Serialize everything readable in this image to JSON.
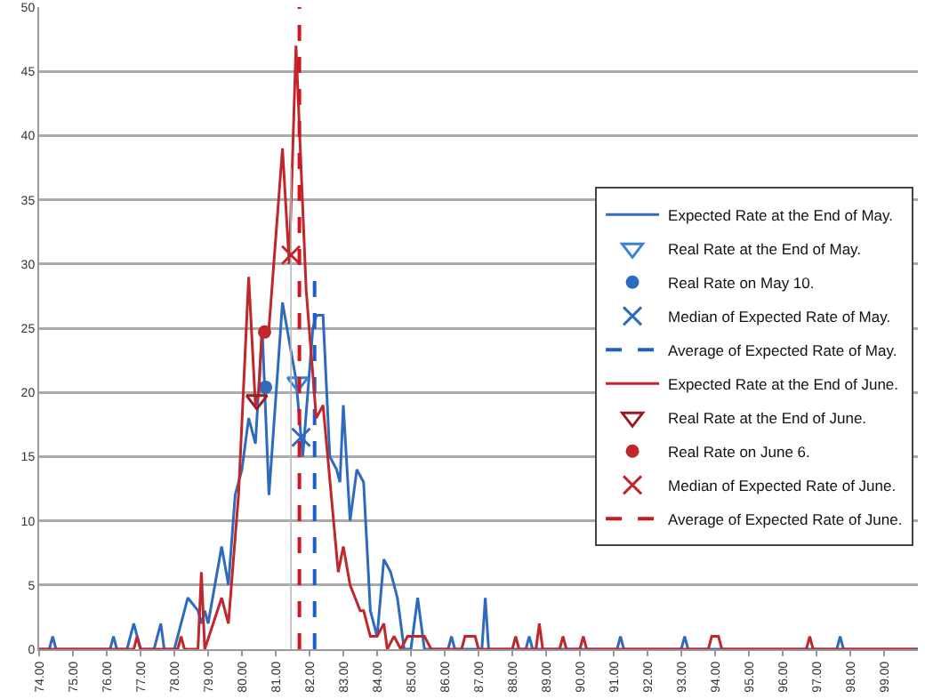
{
  "chart_data": {
    "type": "line",
    "xlim": [
      74,
      100
    ],
    "ylim": [
      0,
      50
    ],
    "xticks": [
      {
        "value": 74,
        "label": "74.00"
      },
      {
        "value": 75,
        "label": "75.00"
      },
      {
        "value": 76,
        "label": "76.00"
      },
      {
        "value": 77,
        "label": "77.00"
      },
      {
        "value": 78,
        "label": "78.00"
      },
      {
        "value": 79,
        "label": "79.00"
      },
      {
        "value": 80,
        "label": "80.00"
      },
      {
        "value": 81,
        "label": "81.00"
      },
      {
        "value": 82,
        "label": "82.00"
      },
      {
        "value": 83,
        "label": "83.00"
      },
      {
        "value": 84,
        "label": "84.00"
      },
      {
        "value": 85,
        "label": "85.00"
      },
      {
        "value": 86,
        "label": "86.00"
      },
      {
        "value": 87,
        "label": "87.00"
      },
      {
        "value": 88,
        "label": "88.00"
      },
      {
        "value": 89,
        "label": "89.00"
      },
      {
        "value": 90,
        "label": "90.00"
      },
      {
        "value": 91,
        "label": "91.00"
      },
      {
        "value": 92,
        "label": "92.00"
      },
      {
        "value": 93,
        "label": "93.00"
      },
      {
        "value": 94,
        "label": "94.00"
      },
      {
        "value": 95,
        "label": "95.00"
      },
      {
        "value": 96,
        "label": "96.00"
      },
      {
        "value": 97,
        "label": "97.00"
      },
      {
        "value": 98,
        "label": "98.00"
      },
      {
        "value": 99,
        "label": "99.00"
      }
    ],
    "yticks": [
      0,
      5,
      10,
      15,
      20,
      25,
      30,
      35,
      40,
      45,
      50
    ],
    "grid": "y",
    "legend": "right",
    "series": [
      {
        "name": "Expected Rate at the End of May.",
        "marker": "none",
        "line_style": "solid",
        "color": "#2e6bbd",
        "x": [
          74,
          74.3,
          74.4,
          74.5,
          76.1,
          76.2,
          76.3,
          76.6,
          76.8,
          77.0,
          77.4,
          77.6,
          77.7,
          78.0,
          78.4,
          78.7,
          78.8,
          78.9,
          79.0,
          79.4,
          79.6,
          79.8,
          80.0,
          80.2,
          80.4,
          80.6,
          80.8,
          81.2,
          81.4,
          81.6,
          81.8,
          82.1,
          82.2,
          82.4,
          82.6,
          82.8,
          82.9,
          83.0,
          83.2,
          83.4,
          83.6,
          83.8,
          84.0,
          84.2,
          84.4,
          84.6,
          84.8,
          85.0,
          85.2,
          85.4,
          86.1,
          86.2,
          86.3,
          87.1,
          87.2,
          87.3,
          88.4,
          88.5,
          88.6,
          91.1,
          91.2,
          91.3,
          93.0,
          93.1,
          93.2,
          97.6,
          97.7,
          97.8,
          100
        ],
        "values": [
          0,
          0,
          1,
          0,
          0,
          1,
          0,
          0,
          2,
          0,
          0,
          2,
          0,
          0,
          4,
          3,
          2,
          3,
          2,
          8,
          5,
          12,
          14,
          18,
          16,
          25,
          12,
          27,
          24,
          21,
          15,
          25,
          26,
          26,
          15,
          14,
          13,
          19,
          10,
          14,
          13,
          3,
          1,
          7,
          6,
          4,
          0,
          0,
          4,
          0,
          0,
          1,
          0,
          0,
          4,
          0,
          0,
          1,
          0,
          0,
          1,
          0,
          0,
          1,
          0,
          0,
          1,
          0,
          0
        ]
      },
      {
        "name": "Real Rate at the End of May.",
        "type": "scatter",
        "marker": "triangle",
        "color": "#3d7fe0",
        "x": [
          81.65
        ],
        "values": [
          20.8
        ]
      },
      {
        "name": "Real Rate on May 10.",
        "type": "scatter",
        "marker": "circle",
        "color": "#2e6bbd",
        "x": [
          80.7
        ],
        "values": [
          20.4
        ]
      },
      {
        "name": "Median of Expected Rate of May.",
        "type": "scatter",
        "marker": "cross",
        "color": "#2e6bbd",
        "x": [
          81.75
        ],
        "values": [
          16.5
        ]
      },
      {
        "name": "Average of Expected Rate of May.",
        "marker": "none",
        "line_style": "dashed",
        "color": "#1f5fc8",
        "x": [
          82.15,
          82.15
        ],
        "values": [
          0,
          29
        ]
      },
      {
        "name": "Expected Rate at the End of June.",
        "marker": "none",
        "line_style": "solid",
        "color": "#c0272d",
        "x": [
          74,
          76.8,
          76.9,
          77.0,
          78.1,
          78.2,
          78.3,
          78.7,
          78.8,
          78.9,
          79.4,
          79.6,
          79.9,
          80.2,
          80.4,
          80.5,
          80.6,
          80.8,
          81.2,
          81.4,
          81.6,
          81.9,
          82.2,
          82.4,
          82.85,
          83.0,
          83.2,
          83.5,
          83.6,
          83.8,
          84.0,
          84.2,
          84.3,
          84.5,
          84.7,
          84.9,
          85.4,
          85.6,
          86.5,
          86.6,
          86.9,
          87.0,
          88.0,
          88.1,
          88.2,
          88.7,
          88.8,
          88.9,
          89.4,
          89.5,
          89.6,
          90.0,
          90.1,
          90.2,
          93.8,
          93.9,
          94.1,
          94.2,
          96.7,
          96.8,
          96.9,
          100
        ],
        "values": [
          0,
          0,
          1,
          0,
          0,
          1,
          0,
          0,
          6,
          0,
          4,
          2,
          12,
          29,
          19,
          20,
          25,
          25,
          39,
          30,
          47,
          28,
          18,
          19,
          6,
          8,
          5,
          3,
          3,
          1,
          1,
          2,
          0,
          1,
          0,
          1,
          1,
          0,
          0,
          1,
          1,
          0,
          0,
          1,
          0,
          0,
          2,
          0,
          0,
          1,
          0,
          0,
          1,
          0,
          0,
          1,
          1,
          0,
          0,
          1,
          0,
          0
        ]
      },
      {
        "name": "Real Rate at the End of June.",
        "type": "scatter",
        "marker": "triangle",
        "color": "#9b1c1f",
        "x": [
          80.44
        ],
        "values": [
          19.4
        ]
      },
      {
        "name": "Real Rate on June 6.",
        "type": "scatter",
        "marker": "circle",
        "color": "#c0272d",
        "x": [
          80.67
        ],
        "values": [
          24.7
        ]
      },
      {
        "name": "Median of Expected Rate of June.",
        "type": "scatter",
        "marker": "cross",
        "color": "#c0272d",
        "x": [
          81.45
        ],
        "values": [
          30.7
        ],
        "errors": [
          [
            0,
            37.5
          ]
        ]
      },
      {
        "name": "Average of Expected Rate of June.",
        "marker": "none",
        "line_style": "dashed",
        "color": "#d0161e",
        "x": [
          81.7,
          81.7
        ],
        "values": [
          0,
          50
        ]
      }
    ]
  }
}
